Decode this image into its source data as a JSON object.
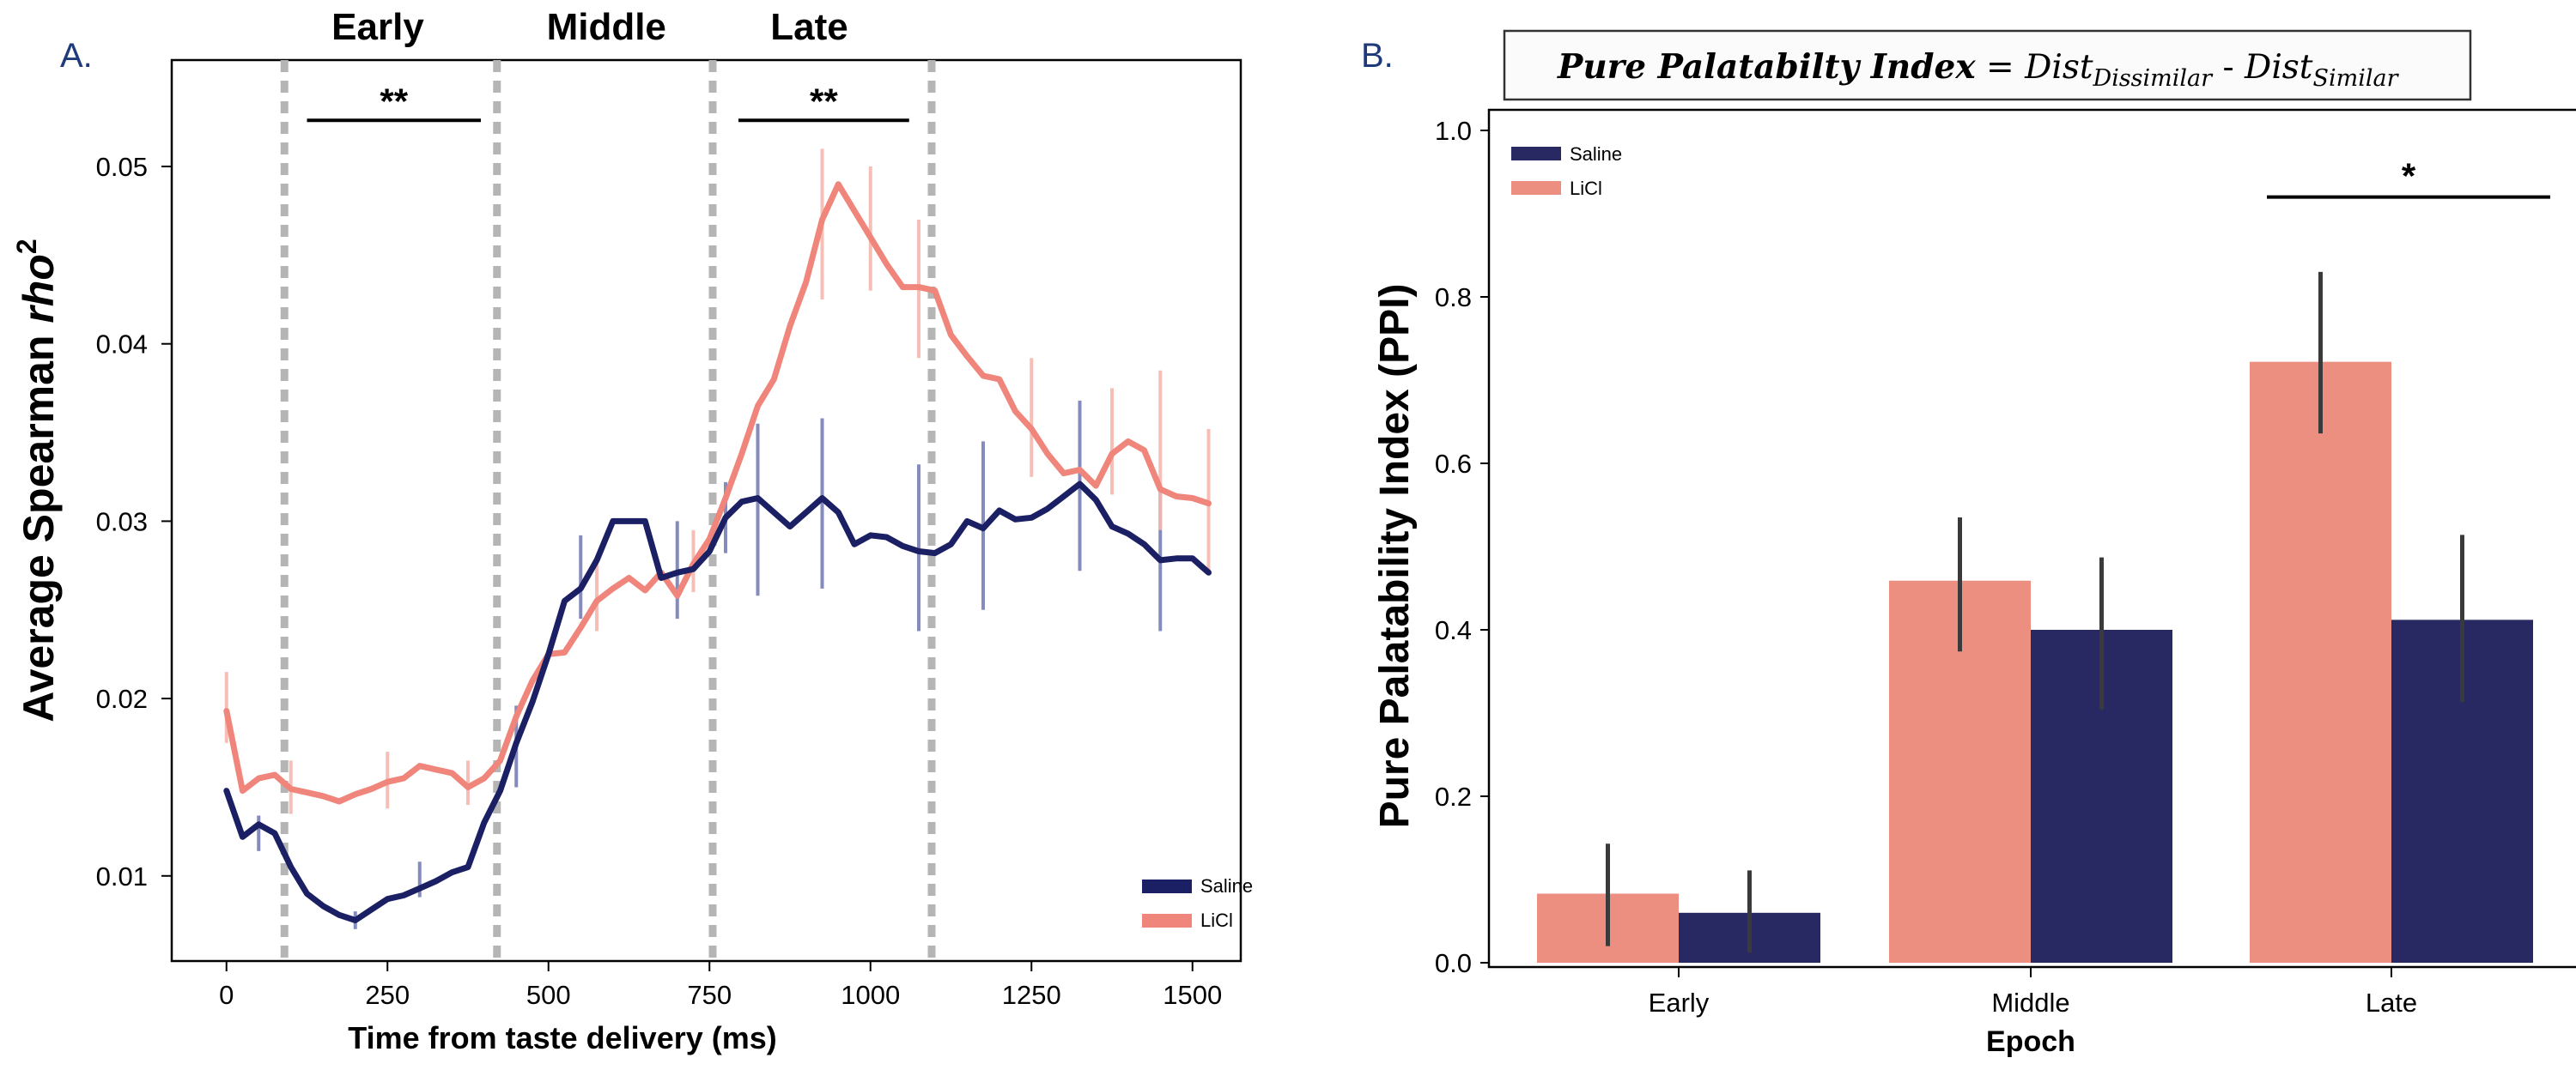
{
  "chart_data": [
    {
      "panel_label": "A.",
      "type": "line",
      "xlabel": "Time from taste delivery (ms)",
      "ylabel_text": "Average Spearman ",
      "ylabel_italic": "rho",
      "ylabel_sup": "2",
      "xlim": [
        -85,
        1575
      ],
      "ylim": [
        0.0052,
        0.056
      ],
      "xticks": [
        0,
        250,
        500,
        750,
        1000,
        1250,
        1500
      ],
      "xtick_labels": [
        "0",
        "250",
        "500",
        "750",
        "1000",
        "1250",
        "1500"
      ],
      "yticks": [
        0.01,
        0.02,
        0.03,
        0.04,
        0.05
      ],
      "ytick_labels": [
        "0.01",
        "0.02",
        "0.03",
        "0.04",
        "0.05"
      ],
      "epoch_lines": [
        90,
        420,
        755,
        1095
      ],
      "epochs": [
        {
          "label": "Early",
          "x": 235
        },
        {
          "label": "Middle",
          "x": 590
        },
        {
          "label": "Late",
          "x": 905
        }
      ],
      "significance": [
        {
          "label": "**",
          "x_start": 125,
          "x_end": 395,
          "y": 0.0526
        },
        {
          "label": "**",
          "x_start": 795,
          "x_end": 1060,
          "y": 0.0526
        }
      ],
      "legend": {
        "position": "bottom-right",
        "entries": [
          "Saline",
          "LiCl"
        ]
      },
      "colors": {
        "Saline": "#1b1f63",
        "LiCl": "#ef857b",
        "epoch_line": "#b5b5b5",
        "sig": "#000000"
      },
      "series": [
        {
          "name": "Saline",
          "x": [
            0,
            25,
            50,
            75,
            100,
            125,
            150,
            175,
            200,
            225,
            250,
            275,
            300,
            325,
            350,
            375,
            400,
            425,
            450,
            475,
            500,
            525,
            550,
            575,
            600,
            625,
            650,
            675,
            700,
            725,
            750,
            775,
            800,
            825,
            850,
            875,
            900,
            925,
            950,
            975,
            1000,
            1025,
            1050,
            1075,
            1100,
            1125,
            1150,
            1175,
            1200,
            1225,
            1250,
            1275,
            1300,
            1325,
            1350,
            1375,
            1400,
            1425,
            1450,
            1475,
            1500,
            1525
          ],
          "y": [
            0.0148,
            0.0122,
            0.0129,
            0.0124,
            0.0105,
            0.009,
            0.0083,
            0.0078,
            0.0075,
            0.0081,
            0.0087,
            0.0089,
            0.0093,
            0.0097,
            0.0102,
            0.0105,
            0.013,
            0.0148,
            0.0175,
            0.0198,
            0.0225,
            0.0255,
            0.0262,
            0.0278,
            0.03,
            0.03,
            0.03,
            0.0268,
            0.0271,
            0.0273,
            0.0283,
            0.0302,
            0.0311,
            0.0313,
            0.0305,
            0.0297,
            0.0305,
            0.0313,
            0.0305,
            0.0287,
            0.0292,
            0.0291,
            0.0286,
            0.0283,
            0.0282,
            0.0287,
            0.03,
            0.0296,
            0.0306,
            0.0301,
            0.0302,
            0.0307,
            0.0314,
            0.0321,
            0.0312,
            0.0297,
            0.0293,
            0.0287,
            0.0278,
            0.0279,
            0.0279,
            0.0271
          ],
          "error_bars": [
            {
              "x": 50,
              "low": 0.0114,
              "high": 0.0134
            },
            {
              "x": 200,
              "low": 0.007,
              "high": 0.008
            },
            {
              "x": 300,
              "low": 0.0088,
              "high": 0.0108
            },
            {
              "x": 450,
              "low": 0.015,
              "high": 0.0196
            },
            {
              "x": 550,
              "low": 0.0245,
              "high": 0.0292
            },
            {
              "x": 700,
              "low": 0.0245,
              "high": 0.03
            },
            {
              "x": 775,
              "low": 0.0282,
              "high": 0.0322
            },
            {
              "x": 825,
              "low": 0.0258,
              "high": 0.0355
            },
            {
              "x": 925,
              "low": 0.0262,
              "high": 0.0358
            },
            {
              "x": 1075,
              "low": 0.0238,
              "high": 0.0332
            },
            {
              "x": 1175,
              "low": 0.025,
              "high": 0.0345
            },
            {
              "x": 1325,
              "low": 0.0272,
              "high": 0.0368
            },
            {
              "x": 1450,
              "low": 0.0238,
              "high": 0.0318
            }
          ]
        },
        {
          "name": "LiCl",
          "x": [
            0,
            25,
            50,
            75,
            100,
            125,
            150,
            175,
            200,
            225,
            250,
            275,
            300,
            325,
            350,
            375,
            400,
            425,
            450,
            475,
            500,
            525,
            550,
            575,
            600,
            625,
            650,
            675,
            700,
            725,
            750,
            775,
            800,
            825,
            850,
            875,
            900,
            925,
            950,
            975,
            1000,
            1025,
            1050,
            1075,
            1100,
            1125,
            1150,
            1175,
            1200,
            1225,
            1250,
            1275,
            1300,
            1325,
            1350,
            1375,
            1400,
            1425,
            1450,
            1475,
            1500,
            1525
          ],
          "y": [
            0.0193,
            0.0148,
            0.0155,
            0.0157,
            0.0149,
            0.0147,
            0.0145,
            0.0142,
            0.0146,
            0.0149,
            0.0153,
            0.0155,
            0.0162,
            0.016,
            0.0158,
            0.015,
            0.0155,
            0.0165,
            0.019,
            0.021,
            0.0225,
            0.0226,
            0.024,
            0.0255,
            0.0262,
            0.0268,
            0.0261,
            0.0271,
            0.0258,
            0.0276,
            0.029,
            0.0313,
            0.0338,
            0.0365,
            0.038,
            0.041,
            0.0435,
            0.047,
            0.049,
            0.0475,
            0.046,
            0.0445,
            0.0432,
            0.0432,
            0.043,
            0.0405,
            0.0393,
            0.0382,
            0.038,
            0.0362,
            0.0352,
            0.0338,
            0.0327,
            0.0329,
            0.032,
            0.0338,
            0.0345,
            0.034,
            0.0318,
            0.0314,
            0.0313,
            0.031
          ],
          "error_bars": [
            {
              "x": 0,
              "low": 0.0175,
              "high": 0.0215
            },
            {
              "x": 100,
              "low": 0.0135,
              "high": 0.0165
            },
            {
              "x": 250,
              "low": 0.0138,
              "high": 0.017
            },
            {
              "x": 375,
              "low": 0.014,
              "high": 0.0165
            },
            {
              "x": 575,
              "low": 0.0238,
              "high": 0.028
            },
            {
              "x": 725,
              "low": 0.026,
              "high": 0.0295
            },
            {
              "x": 925,
              "low": 0.0425,
              "high": 0.051
            },
            {
              "x": 1000,
              "low": 0.043,
              "high": 0.05
            },
            {
              "x": 1075,
              "low": 0.0392,
              "high": 0.047
            },
            {
              "x": 1250,
              "low": 0.0325,
              "high": 0.0392
            },
            {
              "x": 1375,
              "low": 0.0315,
              "high": 0.0375
            },
            {
              "x": 1450,
              "low": 0.0295,
              "high": 0.0385
            },
            {
              "x": 1525,
              "low": 0.0272,
              "high": 0.0352
            }
          ]
        }
      ]
    },
    {
      "panel_label": "B.",
      "type": "bar",
      "title_box": {
        "bold": "Pure Palatabilty Index",
        "eq": " = ",
        "term1": "Dist",
        "sub1": "Dissimilar",
        "minus": " - ",
        "term2": "Dist",
        "sub2": "Similar"
      },
      "xlabel": "Epoch",
      "ylabel": "Pure Palatability Index (PPI)",
      "categories": [
        "Early",
        "Middle",
        "Late"
      ],
      "ylim": [
        0,
        1.0
      ],
      "yticks": [
        0.0,
        0.2,
        0.4,
        0.6,
        0.8,
        1.0
      ],
      "ytick_labels": [
        "0.0",
        "0.2",
        "0.4",
        "0.6",
        "0.8",
        "1.0"
      ],
      "legend": {
        "position": "top-left",
        "entries": [
          "Saline",
          "LiCl"
        ]
      },
      "colors": {
        "LiCl": "#ec8f80",
        "Saline": "#282862",
        "err": "#3a3a3a"
      },
      "series": [
        {
          "name": "LiCl",
          "values": [
            0.083,
            0.459,
            0.722
          ],
          "err_low": [
            0.02,
            0.374,
            0.636
          ],
          "err_high": [
            0.143,
            0.535,
            0.83
          ]
        },
        {
          "name": "Saline",
          "values": [
            0.06,
            0.4,
            0.412
          ],
          "err_low": [
            0.012,
            0.304,
            0.313
          ],
          "err_high": [
            0.111,
            0.487,
            0.514
          ]
        }
      ],
      "significance": [
        {
          "label": "*",
          "category": "Late",
          "y": 0.92
        }
      ]
    }
  ]
}
